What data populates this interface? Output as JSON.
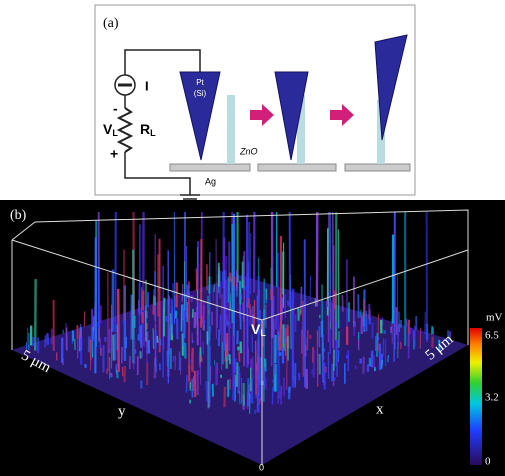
{
  "panel_a": {
    "label": "(a)",
    "current": "I",
    "voltage": "V",
    "voltage_sub": "L",
    "resistor": "R",
    "resistor_sub": "L",
    "minus": "-",
    "plus": "+",
    "tip": "Pt",
    "tip_core": "(Si)",
    "nanowire": "ZnO",
    "substrate": "Ag"
  },
  "panel_b": {
    "label": "(b)",
    "y_size": "5 μm",
    "y_axis": "y",
    "x_size": "5 μm",
    "x_axis": "x",
    "z_axis": "V",
    "z_axis_sub": "L",
    "origin": "0",
    "colorbar": {
      "unit": "mV",
      "ticks": [
        "6.5",
        "3.2",
        "0"
      ]
    }
  }
}
